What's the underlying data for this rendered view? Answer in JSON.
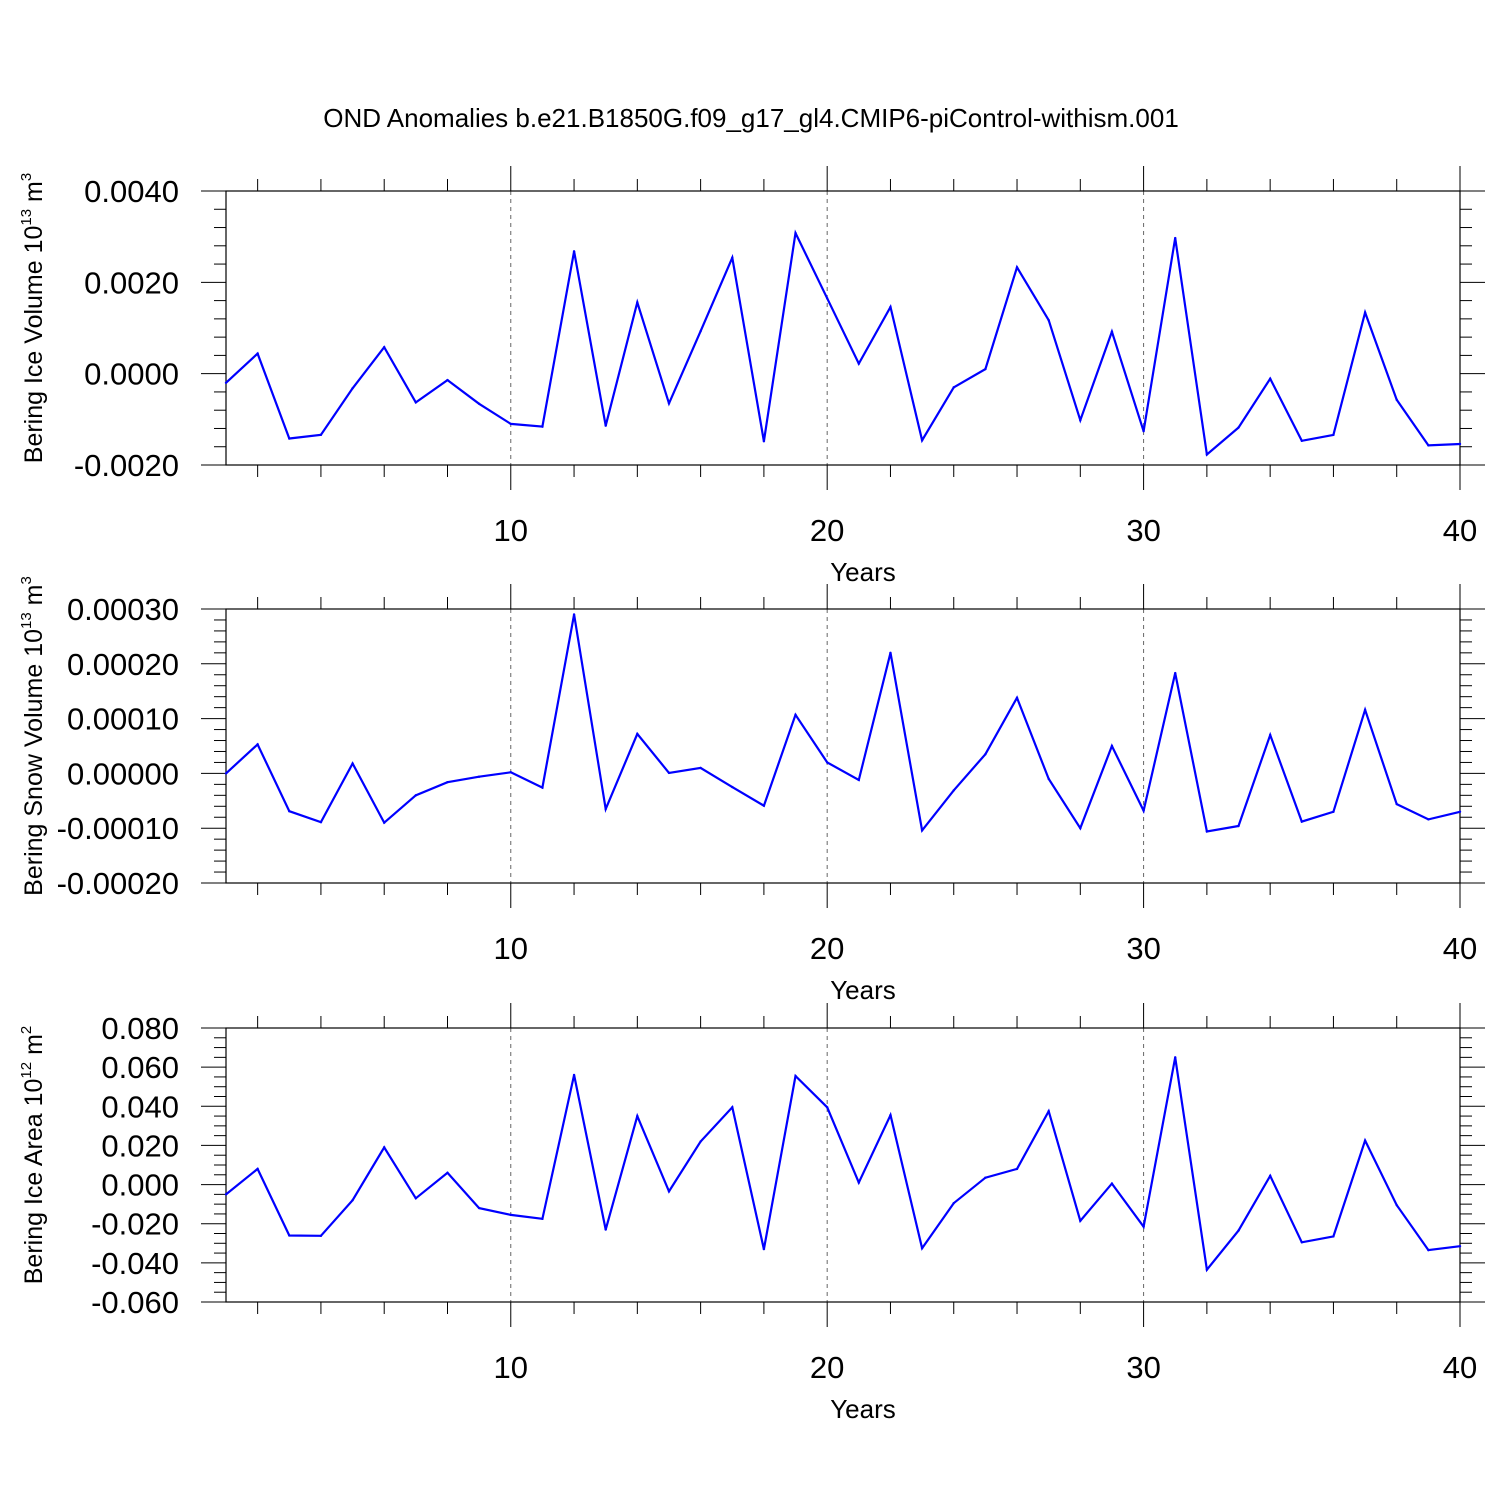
{
  "title": "OND Anomalies b.e21.B1850G.f09_g17_gl4.CMIP6-piControl-withism.001",
  "line_color": "#0000ff",
  "chart_data": [
    {
      "type": "line",
      "ylabel": {
        "prefix": "Bering Ice Volume 10",
        "exp": "13",
        "suffix": " m",
        "unit_exp": "3"
      },
      "xlabel": "Years",
      "xlim": [
        1,
        40
      ],
      "xticks": [
        "10",
        "20",
        "30",
        "40"
      ],
      "ylim": [
        -0.002,
        0.004
      ],
      "yticks": [
        "-0.0020",
        "0.0000",
        "0.0020",
        "0.0040"
      ],
      "grid": "dashed vertical lines at x = 10, 20, 30",
      "x": [
        1,
        2,
        3,
        4,
        5,
        6,
        7,
        8,
        9,
        10,
        11,
        12,
        13,
        14,
        15,
        16,
        17,
        18,
        19,
        20,
        21,
        22,
        23,
        24,
        25,
        26,
        27,
        28,
        29,
        30,
        31,
        32,
        33,
        34,
        35,
        36,
        37,
        38,
        39,
        40
      ],
      "values": [
        -0.0002,
        0.00044,
        -0.00142,
        -0.00134,
        -0.00032,
        0.00058,
        -0.00063,
        -0.00014,
        -0.00066,
        -0.0011,
        -0.00116,
        0.00268,
        -0.00114,
        0.00156,
        -0.00065,
        0.00093,
        0.00254,
        -0.00148,
        0.00308,
        0.00165,
        0.00022,
        0.00146,
        -0.00146,
        -0.0003,
        0.0001,
        0.00233,
        0.00117,
        -0.00102,
        0.00092,
        -0.00126,
        0.00297,
        -0.00177,
        -0.00118,
        -0.00011,
        -0.00147,
        -0.00134,
        0.00134,
        -0.00057,
        -0.00157,
        -0.00154
      ]
    },
    {
      "type": "line",
      "ylabel": {
        "prefix": "Bering Snow Volume 10",
        "exp": "13",
        "suffix": " m",
        "unit_exp": "3"
      },
      "xlabel": "Years",
      "xlim": [
        1,
        40
      ],
      "xticks": [
        "10",
        "20",
        "30",
        "40"
      ],
      "ylim": [
        -0.0002,
        0.0003
      ],
      "yticks": [
        "-0.00020",
        "-0.00010",
        "0.00000",
        "0.00010",
        "0.00020",
        "0.00030"
      ],
      "grid": "dashed vertical lines at x = 10, 20, 30",
      "x": [
        1,
        2,
        3,
        4,
        5,
        6,
        7,
        8,
        9,
        10,
        11,
        12,
        13,
        14,
        15,
        16,
        17,
        18,
        19,
        20,
        21,
        22,
        23,
        24,
        25,
        26,
        27,
        28,
        29,
        30,
        31,
        32,
        33,
        34,
        35,
        36,
        37,
        38,
        39,
        40
      ],
      "values": [
        0.0,
        5.3e-05,
        -6.9e-05,
        -8.9e-05,
        1.8e-05,
        -9e-05,
        -4e-05,
        -1.6e-05,
        -6e-06,
        2e-06,
        -2.6e-05,
        0.00029,
        -6.5e-05,
        7.2e-05,
        1e-06,
        1e-05,
        -2.5e-05,
        -5.9e-05,
        0.000107,
        2e-05,
        -1.2e-05,
        0.00022,
        -0.000104,
        -3.1e-05,
        3.5e-05,
        0.000138,
        -1e-05,
        -0.0001,
        5e-05,
        -6.8e-05,
        0.000183,
        -0.000106,
        -9.6e-05,
        7e-05,
        -8.8e-05,
        -7e-05,
        0.000116,
        -5.6e-05,
        -8.4e-05,
        -7e-05
      ]
    },
    {
      "type": "line",
      "ylabel": {
        "prefix": "Bering Ice Area 10",
        "exp": "12",
        "suffix": " m",
        "unit_exp": "2"
      },
      "xlabel": "Years",
      "xlim": [
        1,
        40
      ],
      "xticks": [
        "10",
        "20",
        "30",
        "40"
      ],
      "ylim": [
        -0.06,
        0.08
      ],
      "yticks": [
        "-0.060",
        "-0.040",
        "-0.020",
        "0.000",
        "0.020",
        "0.040",
        "0.060",
        "0.080"
      ],
      "grid": "dashed vertical lines at x = 10, 20, 30",
      "x": [
        1,
        2,
        3,
        4,
        5,
        6,
        7,
        8,
        9,
        10,
        11,
        12,
        13,
        14,
        15,
        16,
        17,
        18,
        19,
        20,
        21,
        22,
        23,
        24,
        25,
        26,
        27,
        28,
        29,
        30,
        31,
        32,
        33,
        34,
        35,
        36,
        37,
        38,
        39,
        40
      ],
      "values": [
        -0.005,
        0.008,
        -0.026,
        -0.0262,
        -0.008,
        0.019,
        -0.007,
        0.006,
        -0.012,
        -0.0155,
        -0.0175,
        0.056,
        -0.023,
        0.035,
        -0.0035,
        0.022,
        0.0395,
        -0.033,
        0.0555,
        0.0395,
        0.001,
        0.0355,
        -0.0325,
        -0.0095,
        0.0035,
        0.008,
        0.0375,
        -0.0185,
        0.0005,
        -0.0215,
        0.065,
        -0.0435,
        -0.0235,
        0.0045,
        -0.0295,
        -0.0265,
        0.0225,
        -0.0105,
        -0.0335,
        -0.0315
      ]
    }
  ]
}
